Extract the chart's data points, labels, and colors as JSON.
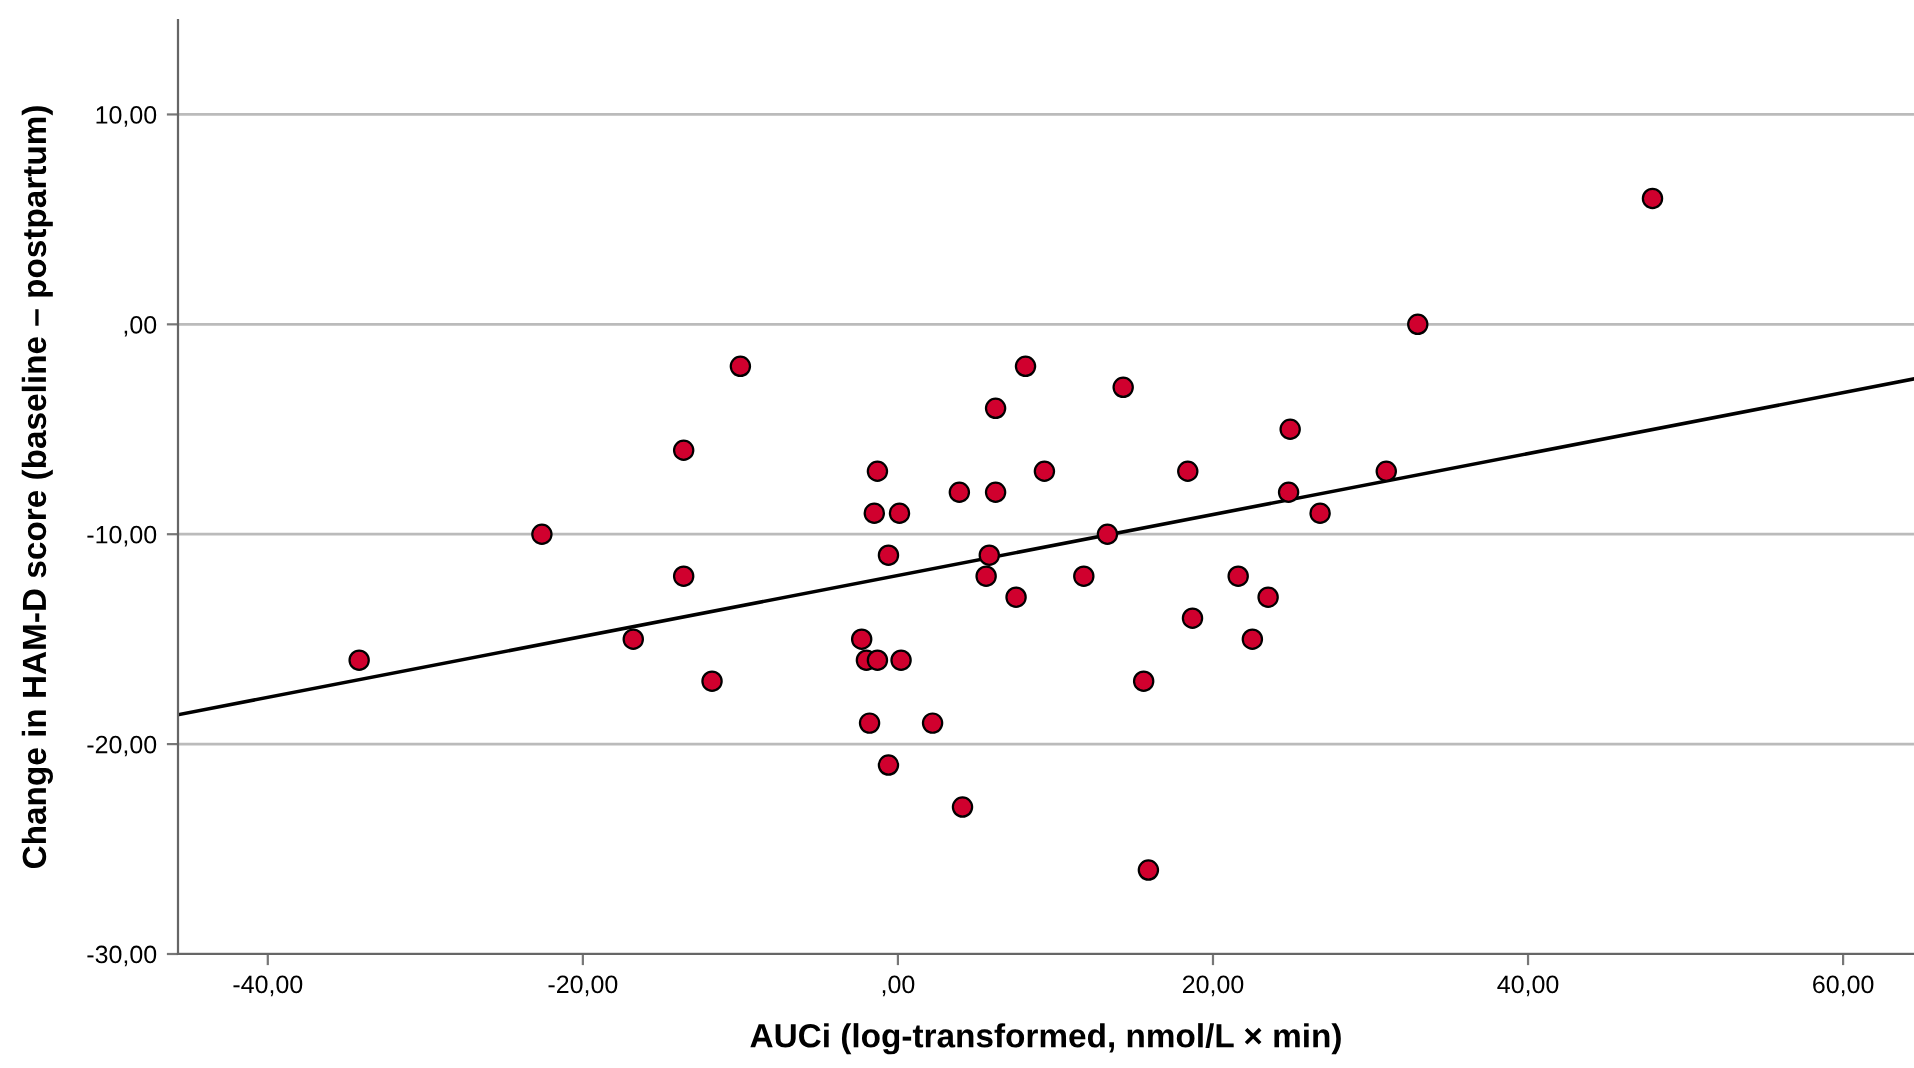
{
  "chart_data": {
    "type": "scatter",
    "xlabel": "AUCi (log-transformed, nmol/L × min)",
    "ylabel": "Change in HAM-D score (baseline – postpartum)",
    "xlim": [
      -45.7,
      64.5
    ],
    "ylim": [
      -30,
      14.5
    ],
    "xticks": [
      {
        "value": -40,
        "label": "-40,00"
      },
      {
        "value": -20,
        "label": "-20,00"
      },
      {
        "value": 0,
        "label": ",00"
      },
      {
        "value": 20,
        "label": "20,00"
      },
      {
        "value": 40,
        "label": "40,00"
      },
      {
        "value": 60,
        "label": "60,00"
      }
    ],
    "yticks": [
      {
        "value": -30,
        "label": "-30,00"
      },
      {
        "value": -20,
        "label": "-20,00"
      },
      {
        "value": -10,
        "label": "-10,00"
      },
      {
        "value": 0,
        "label": ",00"
      },
      {
        "value": 10,
        "label": "10,00"
      }
    ],
    "grid": "y",
    "legend": false,
    "series": [
      {
        "marker": "circle",
        "color": "#d0002e",
        "x": [
          -34.2,
          -22.6,
          -16.8,
          -13.6,
          -13.6,
          -11.8,
          -10.0,
          -2.3,
          -2.0,
          -1.3,
          -1.3,
          -1.5,
          0.1,
          -0.6,
          0.2,
          -1.8,
          2.2,
          -0.6,
          4.1,
          3.9,
          6.2,
          6.2,
          8.1,
          9.3,
          5.8,
          5.6,
          7.5,
          13.3,
          11.8,
          14.3,
          18.4,
          15.6,
          15.9,
          18.7,
          21.6,
          22.5,
          23.5,
          24.9,
          24.8,
          26.8,
          31.0,
          33.0,
          47.9
        ],
        "values": [
          -16,
          -10,
          -15,
          -6,
          -12,
          -17,
          -2,
          -15,
          -16,
          -16,
          -7,
          -9,
          -9,
          -11,
          -16,
          -19,
          -19,
          -21,
          -23,
          -8,
          -4,
          -8,
          -2,
          -7,
          -11,
          -12,
          -13,
          -10,
          -12,
          -3,
          -7,
          -17,
          -26,
          -14,
          -12,
          -15,
          -13,
          -5,
          -8,
          -9,
          -7,
          0,
          6
        ]
      },
      {
        "type": "line",
        "marker": "none",
        "color": "#000000",
        "x": [
          -45.7,
          64.5
        ],
        "values": [
          -18.6,
          -2.6
        ]
      }
    ]
  }
}
